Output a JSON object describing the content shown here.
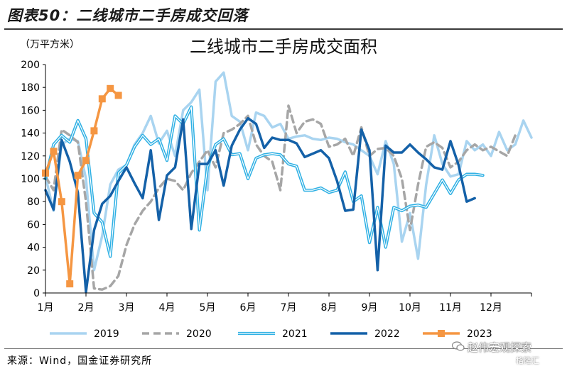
{
  "figure_title": "图表50：二线城市二手房成交回落",
  "source_text": "来源：Wind，国金证券研究所",
  "watermark": {
    "line1": "赵伟宏观探索",
    "line2": "格隆汇"
  },
  "chart_data": {
    "type": "line",
    "title": "二线城市二手房成交面积",
    "ylabel": "（万平方米）",
    "ylim": [
      0,
      200
    ],
    "yticks": [
      0,
      20,
      40,
      60,
      80,
      100,
      120,
      140,
      160,
      180,
      200
    ],
    "xlim": [
      1,
      13
    ],
    "xticks": [
      {
        "x": 1,
        "label": "1月"
      },
      {
        "x": 2,
        "label": "2月"
      },
      {
        "x": 3,
        "label": "3月"
      },
      {
        "x": 4,
        "label": "4月"
      },
      {
        "x": 5,
        "label": "5月"
      },
      {
        "x": 6,
        "label": "6月"
      },
      {
        "x": 7,
        "label": "7月"
      },
      {
        "x": 8,
        "label": "8月"
      },
      {
        "x": 9,
        "label": "9月"
      },
      {
        "x": 10,
        "label": "10月"
      },
      {
        "x": 11,
        "label": "11月"
      },
      {
        "x": 12,
        "label": "12月"
      }
    ],
    "legend_position": "bottom",
    "series": [
      {
        "name": "2019",
        "color": "#a9d4f0",
        "width": 3.5,
        "dash": "",
        "marker": "",
        "points": [
          [
            1.0,
            102
          ],
          [
            1.2,
            72
          ],
          [
            1.4,
            130
          ],
          [
            1.6,
            135
          ],
          [
            1.8,
            133
          ],
          [
            2.0,
            100
          ],
          [
            2.2,
            20
          ],
          [
            2.4,
            50
          ],
          [
            2.6,
            95
          ],
          [
            2.8,
            108
          ],
          [
            3.0,
            112
          ],
          [
            3.2,
            130
          ],
          [
            3.4,
            140
          ],
          [
            3.6,
            155
          ],
          [
            3.8,
            131
          ],
          [
            4.0,
            142
          ],
          [
            4.2,
            120
          ],
          [
            4.4,
            160
          ],
          [
            4.6,
            167
          ],
          [
            4.8,
            178
          ],
          [
            5.0,
            90
          ],
          [
            5.2,
            185
          ],
          [
            5.4,
            193
          ],
          [
            5.6,
            155
          ],
          [
            5.8,
            150
          ],
          [
            6.0,
            125
          ],
          [
            6.2,
            158
          ],
          [
            6.4,
            155
          ],
          [
            6.6,
            145
          ],
          [
            6.8,
            148
          ],
          [
            7.0,
            135
          ],
          [
            7.2,
            137
          ],
          [
            7.4,
            138
          ],
          [
            7.6,
            135
          ],
          [
            7.8,
            134
          ],
          [
            8.0,
            136
          ],
          [
            8.2,
            135
          ],
          [
            8.4,
            132
          ],
          [
            8.6,
            130
          ],
          [
            8.8,
            125
          ],
          [
            9.0,
            120
          ],
          [
            9.2,
            104
          ],
          [
            9.4,
            133
          ],
          [
            9.6,
            113
          ],
          [
            9.8,
            45
          ],
          [
            10.0,
            70
          ],
          [
            10.2,
            30
          ],
          [
            10.4,
            95
          ],
          [
            10.6,
            138
          ],
          [
            10.8,
            113
          ],
          [
            11.0,
            102
          ],
          [
            11.2,
            104
          ],
          [
            11.4,
            133
          ],
          [
            11.6,
            125
          ],
          [
            11.8,
            130
          ],
          [
            12.0,
            120
          ],
          [
            12.2,
            141
          ],
          [
            12.4,
            125
          ],
          [
            12.6,
            130
          ],
          [
            12.8,
            151
          ],
          [
            13.0,
            136
          ]
        ]
      },
      {
        "name": "2020",
        "color": "#a6a6a6",
        "width": 3.5,
        "dash": "10 6",
        "marker": "",
        "points": [
          [
            1.0,
            102
          ],
          [
            1.2,
            90
          ],
          [
            1.4,
            143
          ],
          [
            1.6,
            138
          ],
          [
            1.8,
            132
          ],
          [
            2.0,
            80
          ],
          [
            2.2,
            4
          ],
          [
            2.4,
            3
          ],
          [
            2.6,
            6
          ],
          [
            2.8,
            15
          ],
          [
            3.0,
            42
          ],
          [
            3.2,
            60
          ],
          [
            3.4,
            72
          ],
          [
            3.6,
            80
          ],
          [
            3.8,
            92
          ],
          [
            4.0,
            100
          ],
          [
            4.2,
            98
          ],
          [
            4.4,
            90
          ],
          [
            4.6,
            105
          ],
          [
            4.8,
            115
          ],
          [
            5.0,
            125
          ],
          [
            5.2,
            110
          ],
          [
            5.4,
            140
          ],
          [
            5.6,
            143
          ],
          [
            5.8,
            148
          ],
          [
            6.0,
            155
          ],
          [
            6.2,
            130
          ],
          [
            6.4,
            120
          ],
          [
            6.6,
            115
          ],
          [
            6.8,
            90
          ],
          [
            7.0,
            164
          ],
          [
            7.2,
            140
          ],
          [
            7.4,
            150
          ],
          [
            7.6,
            152
          ],
          [
            7.8,
            148
          ],
          [
            8.0,
            128
          ],
          [
            8.2,
            130
          ],
          [
            8.4,
            135
          ],
          [
            8.6,
            120
          ],
          [
            8.8,
            145
          ],
          [
            9.0,
            120
          ],
          [
            9.2,
            126
          ],
          [
            9.4,
            127
          ],
          [
            9.6,
            120
          ],
          [
            9.8,
            100
          ],
          [
            10.0,
            55
          ],
          [
            10.2,
            95
          ],
          [
            10.4,
            128
          ],
          [
            10.6,
            132
          ],
          [
            10.8,
            127
          ],
          [
            11.0,
            110
          ],
          [
            11.2,
            115
          ],
          [
            11.4,
            125
          ],
          [
            11.6,
            130
          ],
          [
            11.8,
            125
          ],
          [
            12.0,
            128
          ],
          [
            12.2,
            124
          ],
          [
            12.4,
            120
          ],
          [
            12.6,
            138
          ]
        ]
      },
      {
        "name": "2021",
        "color": "#2eb0e4",
        "width": 1.8,
        "dash": "",
        "marker": "",
        "outline": true,
        "points": [
          [
            1.0,
            100
          ],
          [
            1.2,
            130
          ],
          [
            1.4,
            138
          ],
          [
            1.6,
            132
          ],
          [
            1.8,
            151
          ],
          [
            2.0,
            135
          ],
          [
            2.2,
            70
          ],
          [
            2.4,
            62
          ],
          [
            2.6,
            32
          ],
          [
            2.8,
            105
          ],
          [
            3.0,
            112
          ],
          [
            3.2,
            128
          ],
          [
            3.4,
            138
          ],
          [
            3.6,
            130
          ],
          [
            3.8,
            135
          ],
          [
            4.0,
            116
          ],
          [
            4.2,
            155
          ],
          [
            4.4,
            148
          ],
          [
            4.6,
            163
          ],
          [
            4.8,
            55
          ],
          [
            5.0,
            110
          ],
          [
            5.2,
            130
          ],
          [
            5.4,
            135
          ],
          [
            5.6,
            121
          ],
          [
            5.8,
            122
          ],
          [
            6.0,
            100
          ],
          [
            6.2,
            118
          ],
          [
            6.4,
            121
          ],
          [
            6.6,
            122
          ],
          [
            6.8,
            121
          ],
          [
            7.0,
            113
          ],
          [
            7.2,
            111
          ],
          [
            7.4,
            90
          ],
          [
            7.6,
            90
          ],
          [
            7.8,
            92
          ],
          [
            8.0,
            88
          ],
          [
            8.2,
            90
          ],
          [
            8.4,
            106
          ],
          [
            8.6,
            80
          ],
          [
            8.8,
            85
          ],
          [
            9.0,
            44
          ],
          [
            9.2,
            75
          ],
          [
            9.4,
            40
          ],
          [
            9.6,
            75
          ],
          [
            9.8,
            72
          ],
          [
            10.0,
            76
          ],
          [
            10.2,
            77
          ],
          [
            10.4,
            75
          ],
          [
            10.6,
            87
          ],
          [
            10.8,
            99
          ],
          [
            11.0,
            87
          ],
          [
            11.2,
            99
          ],
          [
            11.4,
            104
          ],
          [
            11.6,
            104
          ],
          [
            11.8,
            103
          ]
        ]
      },
      {
        "name": "2022",
        "color": "#1461a8",
        "width": 3.5,
        "dash": "",
        "marker": "",
        "points": [
          [
            1.0,
            90
          ],
          [
            1.2,
            73
          ],
          [
            1.4,
            134
          ],
          [
            1.6,
            115
          ],
          [
            1.8,
            88
          ],
          [
            2.0,
            1
          ],
          [
            2.2,
            55
          ],
          [
            2.4,
            78
          ],
          [
            2.6,
            85
          ],
          [
            2.8,
            98
          ],
          [
            3.0,
            110
          ],
          [
            3.2,
            96
          ],
          [
            3.4,
            83
          ],
          [
            3.6,
            125
          ],
          [
            3.8,
            64
          ],
          [
            4.0,
            103
          ],
          [
            4.2,
            110
          ],
          [
            4.4,
            152
          ],
          [
            4.6,
            56
          ],
          [
            4.8,
            113
          ],
          [
            5.0,
            113
          ],
          [
            5.2,
            125
          ],
          [
            5.4,
            94
          ],
          [
            5.6,
            129
          ],
          [
            5.8,
            143
          ],
          [
            6.0,
            153
          ],
          [
            6.2,
            148
          ],
          [
            6.4,
            127
          ],
          [
            6.6,
            136
          ],
          [
            6.8,
            134
          ],
          [
            7.0,
            134
          ],
          [
            7.2,
            131
          ],
          [
            7.4,
            119
          ],
          [
            7.6,
            122
          ],
          [
            7.8,
            125
          ],
          [
            8.0,
            118
          ],
          [
            8.2,
            98
          ],
          [
            8.4,
            72
          ],
          [
            8.6,
            73
          ],
          [
            8.8,
            143
          ],
          [
            9.0,
            125
          ],
          [
            9.2,
            20
          ],
          [
            9.4,
            129
          ],
          [
            9.6,
            123
          ],
          [
            9.8,
            123
          ],
          [
            10.0,
            130
          ],
          [
            10.2,
            123
          ],
          [
            10.4,
            117
          ],
          [
            10.6,
            110
          ],
          [
            10.8,
            108
          ],
          [
            11.0,
            133
          ],
          [
            11.2,
            112
          ],
          [
            11.4,
            80
          ],
          [
            11.6,
            83
          ]
        ]
      },
      {
        "name": "2023",
        "color": "#f59642",
        "width": 3.5,
        "dash": "",
        "marker": "square",
        "points": [
          [
            1.0,
            105
          ],
          [
            1.2,
            124
          ],
          [
            1.4,
            80
          ],
          [
            1.6,
            8
          ],
          [
            1.8,
            103
          ],
          [
            2.0,
            116
          ],
          [
            2.2,
            142
          ],
          [
            2.4,
            170
          ],
          [
            2.6,
            179
          ],
          [
            2.8,
            173
          ]
        ]
      }
    ]
  }
}
